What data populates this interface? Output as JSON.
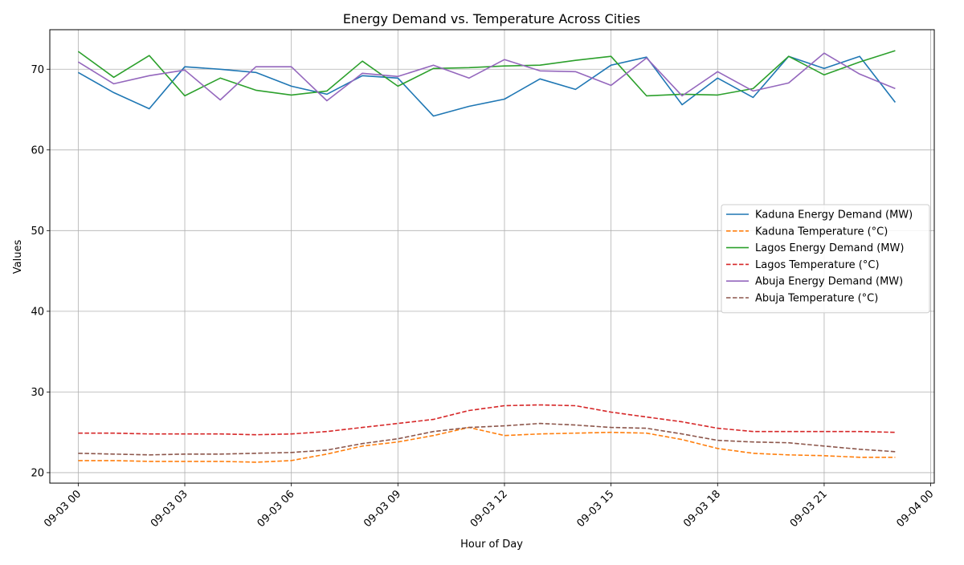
{
  "chart_data": {
    "type": "line",
    "title": "Energy Demand vs. Temperature Across Cities",
    "xlabel": "Hour of Day",
    "ylabel": "Values",
    "grid": true,
    "legend_position": "center-right",
    "xlim": [
      "2024-09-02 23:12",
      "2024-09-04 00:06"
    ],
    "ylim": [
      18.7,
      74.9
    ],
    "x": [
      "09-03 00",
      "09-03 01",
      "09-03 02",
      "09-03 03",
      "09-03 04",
      "09-03 05",
      "09-03 06",
      "09-03 07",
      "09-03 08",
      "09-03 09",
      "09-03 10",
      "09-03 11",
      "09-03 12",
      "09-03 13",
      "09-03 14",
      "09-03 15",
      "09-03 16",
      "09-03 17",
      "09-03 18",
      "09-03 19",
      "09-03 20",
      "09-03 21",
      "09-03 22",
      "09-03 23"
    ],
    "x_ticks": [
      "09-03 00",
      "09-03 03",
      "09-03 06",
      "09-03 09",
      "09-03 12",
      "09-03 15",
      "09-03 18",
      "09-03 21",
      "09-04 00"
    ],
    "y_ticks": [
      20,
      30,
      40,
      50,
      60,
      70
    ],
    "series": [
      {
        "name": "Kaduna Energy Demand (MW)",
        "color": "#1f77b4",
        "style": "solid",
        "values": [
          69.6,
          67.1,
          65.1,
          70.3,
          70.0,
          69.6,
          67.9,
          66.9,
          69.2,
          68.9,
          64.2,
          65.4,
          66.3,
          68.8,
          67.5,
          70.5,
          71.5,
          65.6,
          68.9,
          66.5,
          71.6,
          70.1,
          71.6,
          65.9
        ]
      },
      {
        "name": "Kaduna Temperature (°C)",
        "color": "#ff7f0e",
        "style": "dashed",
        "values": [
          21.5,
          21.5,
          21.4,
          21.4,
          21.4,
          21.3,
          21.5,
          22.3,
          23.3,
          23.8,
          24.6,
          25.6,
          24.6,
          24.8,
          24.9,
          25.0,
          24.9,
          24.1,
          23.0,
          22.4,
          22.2,
          22.1,
          21.9,
          21.9
        ]
      },
      {
        "name": "Lagos Energy Demand (MW)",
        "color": "#2ca02c",
        "style": "solid",
        "values": [
          72.2,
          69.0,
          71.7,
          66.7,
          68.9,
          67.4,
          66.8,
          67.3,
          71.0,
          67.9,
          70.1,
          70.2,
          70.4,
          70.5,
          71.1,
          71.6,
          66.7,
          66.9,
          66.8,
          67.6,
          71.6,
          69.3,
          70.9,
          72.3
        ]
      },
      {
        "name": "Lagos Temperature (°C)",
        "color": "#d62728",
        "style": "dashed",
        "values": [
          24.9,
          24.9,
          24.8,
          24.8,
          24.8,
          24.7,
          24.8,
          25.1,
          25.6,
          26.1,
          26.6,
          27.7,
          28.3,
          28.4,
          28.3,
          27.5,
          26.9,
          26.3,
          25.5,
          25.1,
          25.1,
          25.1,
          25.1,
          25.0
        ]
      },
      {
        "name": "Abuja Energy Demand (MW)",
        "color": "#9467bd",
        "style": "solid",
        "values": [
          70.9,
          68.2,
          69.2,
          69.9,
          66.2,
          70.3,
          70.3,
          66.1,
          69.5,
          69.1,
          70.5,
          68.9,
          71.2,
          69.8,
          69.7,
          68.0,
          71.4,
          66.7,
          69.7,
          67.3,
          68.3,
          72.0,
          69.4,
          67.6
        ]
      },
      {
        "name": "Abuja Temperature (°C)",
        "color": "#8c564b",
        "style": "dashed",
        "values": [
          22.4,
          22.3,
          22.2,
          22.3,
          22.3,
          22.4,
          22.5,
          22.8,
          23.6,
          24.2,
          25.1,
          25.6,
          25.8,
          26.1,
          25.9,
          25.6,
          25.5,
          24.8,
          24.0,
          23.8,
          23.7,
          23.3,
          22.9,
          22.6
        ]
      }
    ]
  }
}
